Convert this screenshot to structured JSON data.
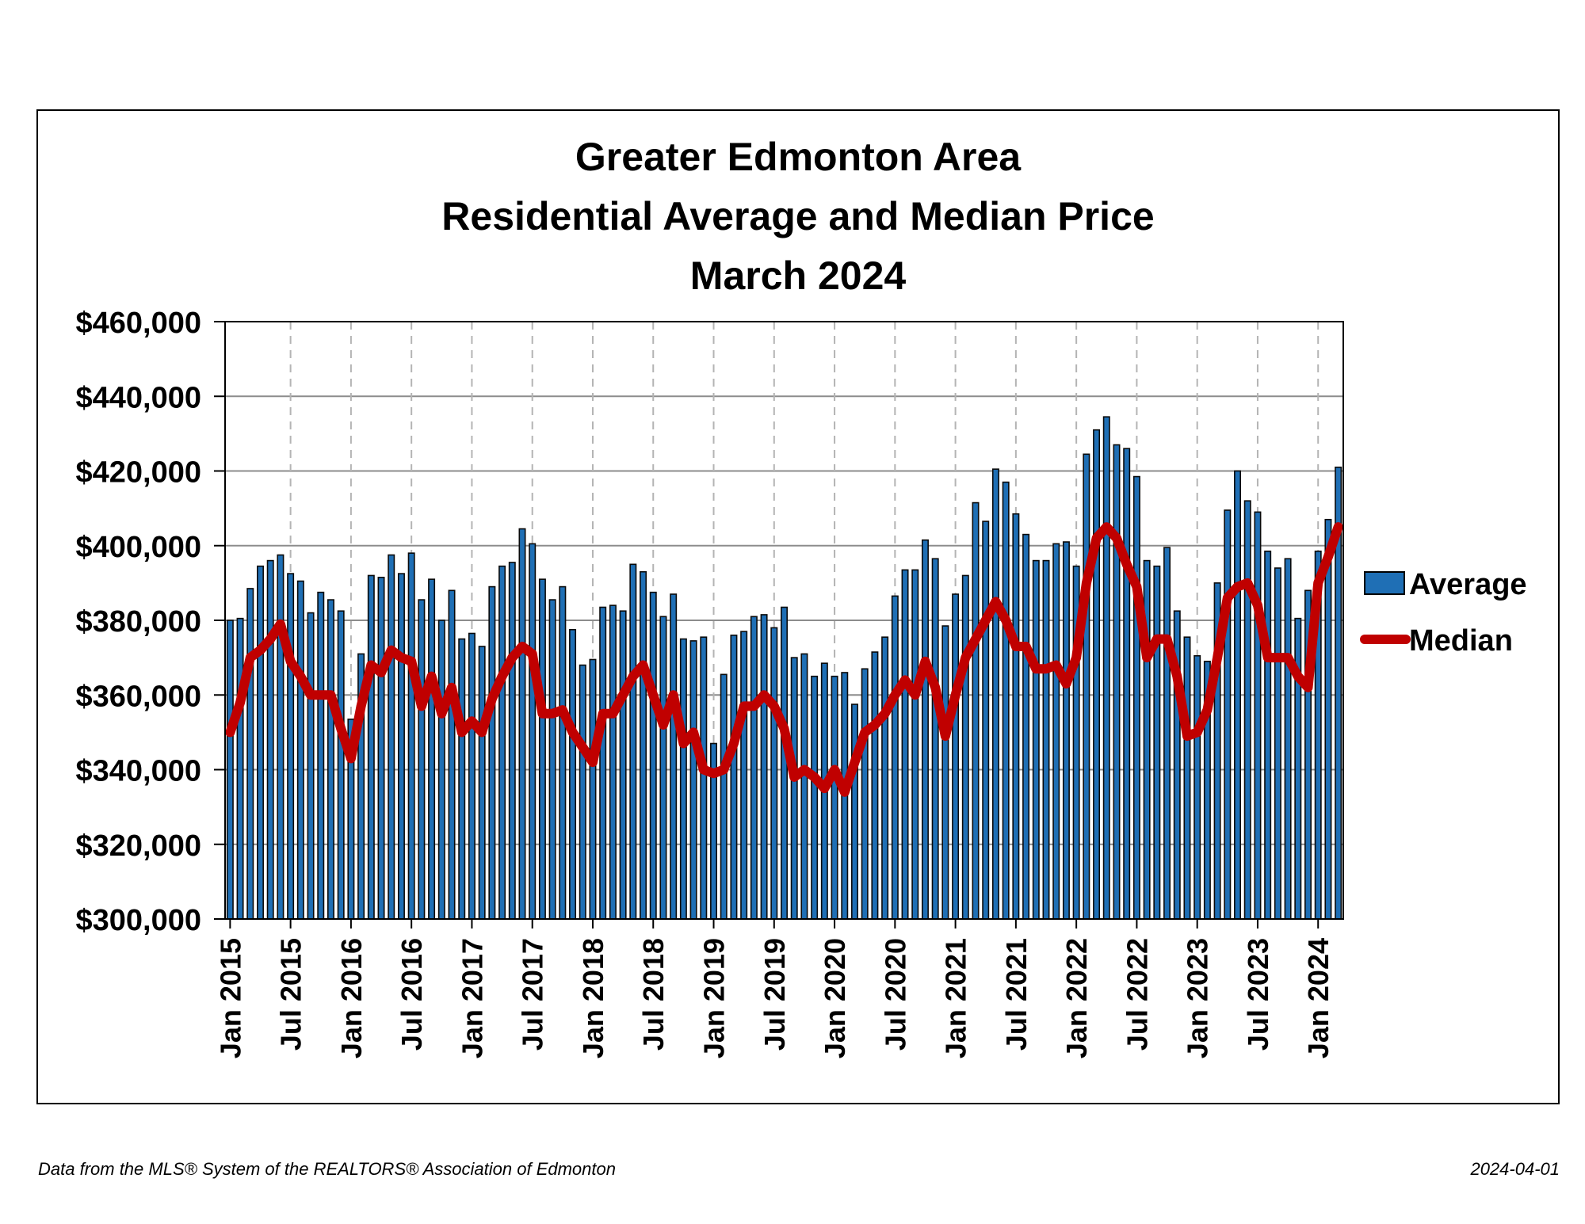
{
  "chart_data": {
    "type": "bar",
    "title_lines": [
      "Greater Edmonton Area",
      "Residential Average and Median Price",
      "March 2024"
    ],
    "ylim": [
      300000,
      460000
    ],
    "y_ticks": [
      {
        "value": 300000,
        "label": "$300,000"
      },
      {
        "value": 320000,
        "label": "$320,000"
      },
      {
        "value": 340000,
        "label": "$340,000"
      },
      {
        "value": 360000,
        "label": "$360,000"
      },
      {
        "value": 380000,
        "label": "$380,000"
      },
      {
        "value": 400000,
        "label": "$400,000"
      },
      {
        "value": 420000,
        "label": "$420,000"
      },
      {
        "value": 440000,
        "label": "$440,000"
      },
      {
        "value": 460000,
        "label": "$460,000"
      }
    ],
    "x_ticks": [
      {
        "index": 0,
        "label": "Jan 2015"
      },
      {
        "index": 6,
        "label": "Jul 2015"
      },
      {
        "index": 12,
        "label": "Jan 2016"
      },
      {
        "index": 18,
        "label": "Jul 2016"
      },
      {
        "index": 24,
        "label": "Jan 2017"
      },
      {
        "index": 30,
        "label": "Jul 2017"
      },
      {
        "index": 36,
        "label": "Jan 2018"
      },
      {
        "index": 42,
        "label": "Jul 2018"
      },
      {
        "index": 48,
        "label": "Jan 2019"
      },
      {
        "index": 54,
        "label": "Jul 2019"
      },
      {
        "index": 60,
        "label": "Jan 2020"
      },
      {
        "index": 66,
        "label": "Jul 2020"
      },
      {
        "index": 72,
        "label": "Jan 2021"
      },
      {
        "index": 78,
        "label": "Jul 2021"
      },
      {
        "index": 84,
        "label": "Jan 2022"
      },
      {
        "index": 90,
        "label": "Jul 2022"
      },
      {
        "index": 96,
        "label": "Jan 2023"
      },
      {
        "index": 102,
        "label": "Jul 2023"
      },
      {
        "index": 108,
        "label": "Jan 2024"
      }
    ],
    "x_start": "2015-01",
    "x_end": "2024-03",
    "grid": {
      "horizontal": true,
      "vertical_dashed": true
    },
    "legend_position": "right",
    "series": [
      {
        "name": "Average",
        "type": "bar",
        "color": "#1f6fb5",
        "values": [
          380000,
          380500,
          388500,
          394500,
          396000,
          397500,
          392500,
          390500,
          382000,
          387500,
          385500,
          382500,
          353500,
          371000,
          392000,
          391500,
          397500,
          392500,
          398000,
          385500,
          391000,
          380000,
          388000,
          375000,
          376500,
          373000,
          389000,
          394500,
          395500,
          404500,
          400500,
          391000,
          385500,
          389000,
          377500,
          368000,
          369500,
          383500,
          384000,
          382500,
          395000,
          393000,
          387500,
          381000,
          387000,
          375000,
          374500,
          375500,
          347000,
          365500,
          376000,
          377000,
          381000,
          381500,
          378000,
          383500,
          370000,
          371000,
          365000,
          368500,
          365000,
          366000,
          357500,
          367000,
          371500,
          375500,
          386500,
          393500,
          393500,
          401500,
          396500,
          378500,
          387000,
          392000,
          411500,
          406500,
          420500,
          417000,
          408500,
          403000,
          396000,
          396000,
          400500,
          401000,
          394500,
          424500,
          431000,
          434500,
          427000,
          426000,
          418500,
          396000,
          394500,
          399500,
          382500,
          375500,
          370500,
          369000,
          390000,
          409500,
          420000,
          412000,
          409000,
          398500,
          394000,
          396500,
          380500,
          388000,
          398500,
          407000,
          421000
        ]
      },
      {
        "name": "Median",
        "type": "line",
        "color": "#c00000",
        "values": [
          350000,
          358000,
          370000,
          372000,
          375000,
          379000,
          369000,
          365000,
          360000,
          360000,
          360000,
          351000,
          343000,
          357000,
          368000,
          366000,
          372000,
          370000,
          369000,
          357000,
          365000,
          355000,
          362000,
          350000,
          353000,
          350000,
          359000,
          365000,
          370000,
          373000,
          371000,
          355000,
          355000,
          356000,
          350000,
          346000,
          342000,
          355000,
          355000,
          360000,
          365000,
          368000,
          360000,
          352000,
          360000,
          347000,
          350000,
          340000,
          339000,
          340000,
          347000,
          357000,
          357000,
          360000,
          357000,
          351000,
          338000,
          340000,
          338000,
          335000,
          340000,
          334000,
          342000,
          350000,
          352000,
          355000,
          360000,
          364000,
          360000,
          369000,
          362000,
          349000,
          360000,
          370000,
          375000,
          380000,
          385000,
          380000,
          373000,
          373000,
          367000,
          367000,
          368000,
          363000,
          370000,
          390000,
          402000,
          405000,
          402000,
          395000,
          389000,
          370000,
          375000,
          375000,
          365000,
          349000,
          350000,
          356000,
          370000,
          386000,
          389000,
          390000,
          384000,
          370000,
          370000,
          370000,
          365000,
          362000,
          390000,
          397000,
          405000
        ]
      }
    ]
  },
  "footer": {
    "source": "Data from the MLS® System of the REALTORS® Association of Edmonton",
    "date": "2024-04-01"
  }
}
